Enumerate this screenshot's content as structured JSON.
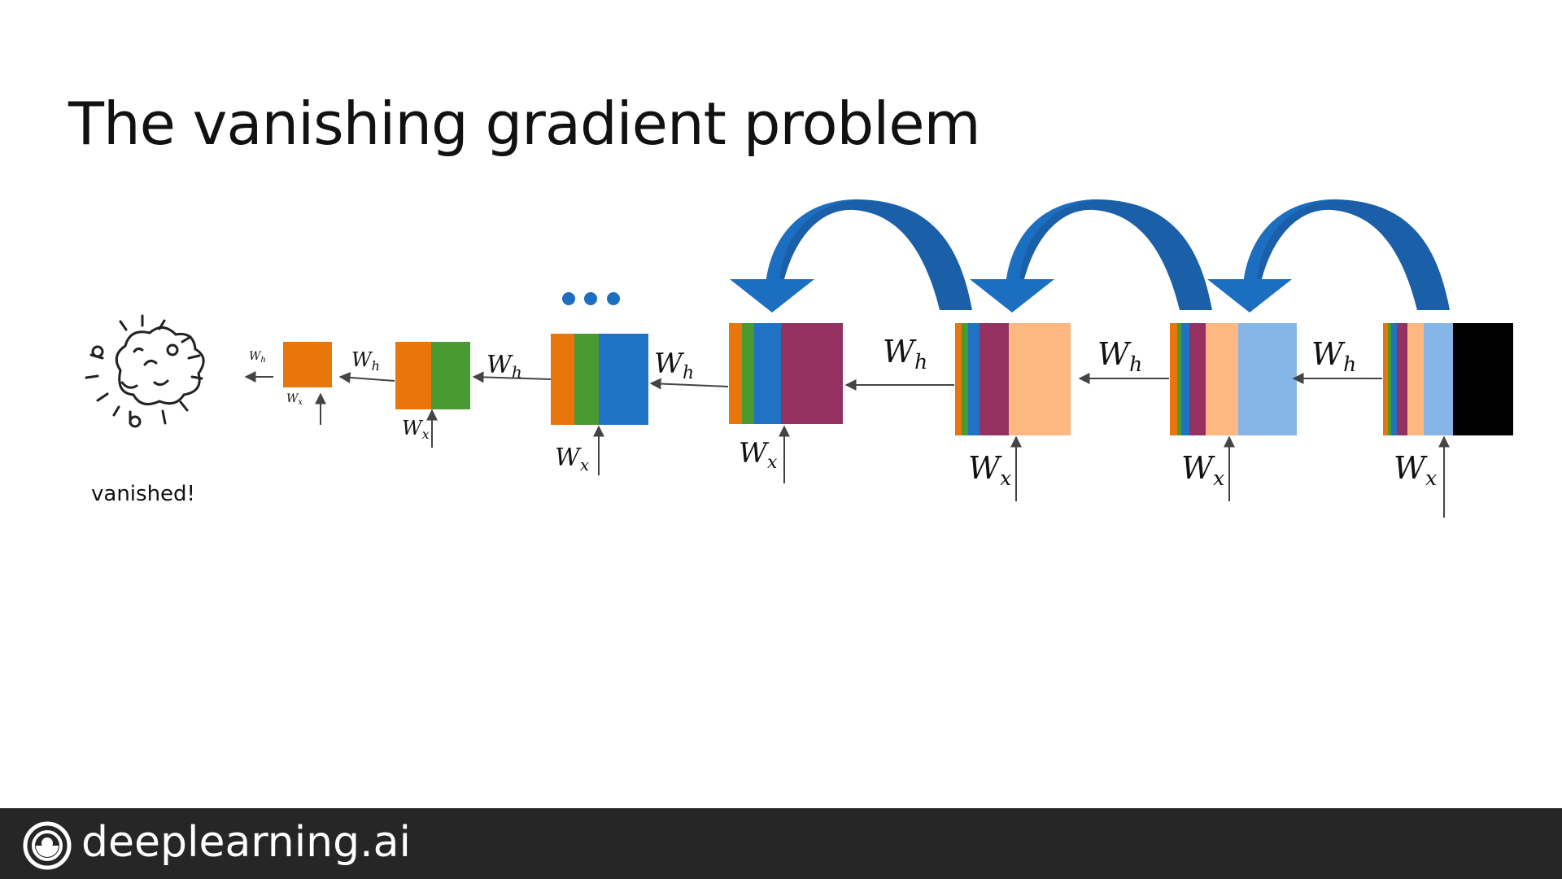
{
  "slide": {
    "title": "The vanishing gradient problem",
    "vanished_label": "vanished!"
  },
  "weights": {
    "hidden": {
      "base": "W",
      "sub": "h"
    },
    "input": {
      "base": "W",
      "sub": "x"
    }
  },
  "colors": {
    "orange": "#E8760A",
    "green": "#4A9A32",
    "blue": "#1F72C4",
    "plum": "#953160",
    "peach": "#FDB882",
    "light_blue": "#86B6E8",
    "black": "#000000",
    "curved_arrow": "#1C6EC0",
    "dots": "#1C6EC0",
    "footer_bg": "#262626"
  },
  "cells": [
    {
      "id": "step-1",
      "stripes": [
        "orange"
      ]
    },
    {
      "id": "step-2",
      "stripes": [
        "orange",
        "green"
      ]
    },
    {
      "id": "step-3",
      "stripes": [
        "orange",
        "green",
        "blue"
      ]
    },
    {
      "id": "step-4",
      "stripes": [
        "orange",
        "green",
        "blue",
        "plum"
      ]
    },
    {
      "id": "step-5",
      "stripes": [
        "orange",
        "green",
        "blue",
        "plum",
        "peach"
      ]
    },
    {
      "id": "step-6",
      "stripes": [
        "orange",
        "green",
        "blue",
        "plum",
        "peach",
        "light_blue"
      ]
    },
    {
      "id": "step-7",
      "stripes": [
        "orange",
        "green",
        "blue",
        "plum",
        "peach",
        "light_blue",
        "black"
      ]
    }
  ],
  "ellipsis_dots": 3,
  "backprop_arrows": 3,
  "footer": {
    "brand": "deeplearning.ai",
    "logo_icon": "deeplearning-logo-icon"
  },
  "icons": {
    "explosion": "explosion-icon"
  }
}
